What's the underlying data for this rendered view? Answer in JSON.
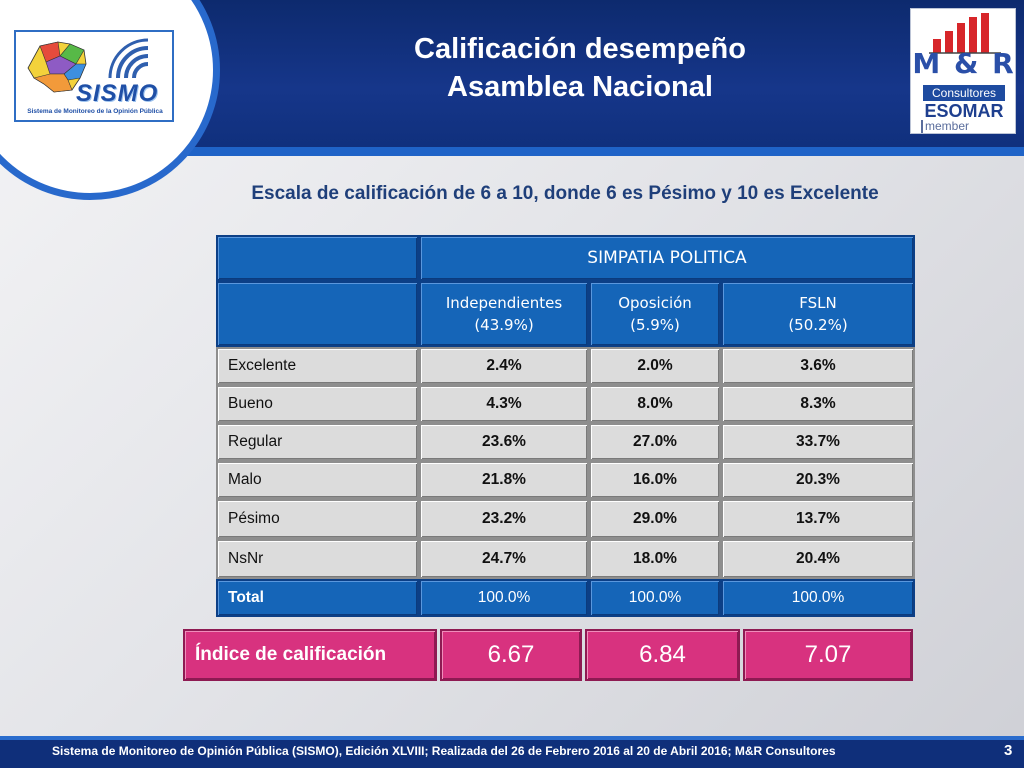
{
  "header": {
    "title_line1": "Calificación desempeño",
    "title_line2": "Asamblea Nacional",
    "left_logo": {
      "word": "SISMO",
      "subtitle": "Sistema de Monitoreo de la Opinión Pública"
    },
    "right_logo": {
      "brand": "M & R",
      "consultores": "Consultores",
      "esomar": "ESOMAR",
      "member": "member"
    }
  },
  "subtitle": "Escala de calificación de 6 a 10, donde 6 es Pésimo y 10 es Excelente",
  "table": {
    "group_header": "SIMPATIA POLITICA",
    "columns": [
      {
        "name": "Independientes",
        "share": "(43.9%)"
      },
      {
        "name": "Oposición",
        "share": "(5.9%)"
      },
      {
        "name": "FSLN",
        "share": "(50.2%)"
      }
    ],
    "rows": [
      {
        "label": "Excelente",
        "values": [
          "2.4%",
          "2.0%",
          "3.6%"
        ]
      },
      {
        "label": "Bueno",
        "values": [
          "4.3%",
          "8.0%",
          "8.3%"
        ]
      },
      {
        "label": "Regular",
        "values": [
          "23.6%",
          "27.0%",
          "33.7%"
        ]
      },
      {
        "label": "Malo",
        "values": [
          "21.8%",
          "16.0%",
          "20.3%"
        ]
      },
      {
        "label": "Pésimo",
        "values": [
          "23.2%",
          "29.0%",
          "13.7%"
        ]
      },
      {
        "label": "NsNr",
        "values": [
          "24.7%",
          "18.0%",
          "20.4%"
        ]
      }
    ],
    "total": {
      "label": "Total",
      "values": [
        "100.0%",
        "100.0%",
        "100.0%"
      ]
    }
  },
  "index": {
    "label": "Índice de calificación",
    "values": [
      "6.67",
      "6.84",
      "7.07"
    ]
  },
  "footer": {
    "text": "Sistema de Monitoreo de Opinión Pública (SISMO), Edición XLVIII; Realizada del  26 de Febrero 2016 al 20 de Abril 2016; M&R Consultores",
    "page": "3"
  },
  "colors": {
    "header_bg": "#10307d",
    "header_stripe": "#1f63c7",
    "table_blue": "#1565b8",
    "row_gray": "#dcdcdc",
    "index_pink": "#d8327f"
  }
}
